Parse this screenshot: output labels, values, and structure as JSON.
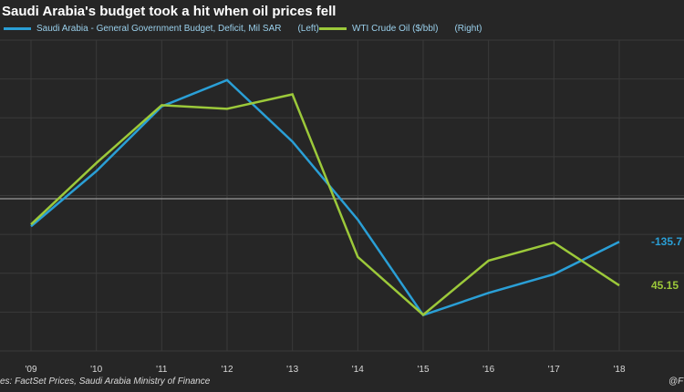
{
  "title": "Saudi Arabia's budget took a hit when oil prices fell",
  "source_text": "es: FactSet Prices, Saudi Arabia Ministry of Finance",
  "credit_text": "@F",
  "colors": {
    "background": "#262626",
    "budget": "#2a9fd6",
    "oil": "#9cc93a",
    "zero_line": "#9a9a9a",
    "grid": "#3a3a3a"
  },
  "legend": [
    {
      "label": "Saudi Arabia - General Government Budget, Deficit, Mil SAR",
      "side": "(Left)",
      "color": "#2a9fd6"
    },
    {
      "label": "WTI Crude Oil ($/bbl)",
      "side": "(Right)",
      "color": "#9cc93a"
    }
  ],
  "chart_data": {
    "type": "line",
    "title": "Saudi Arabia's budget took a hit when oil prices fell",
    "categories": [
      "'09",
      "'10",
      "'11",
      "'12",
      "'13",
      "'14",
      "'15",
      "'16",
      "'17",
      "'18"
    ],
    "series": [
      {
        "name": "Saudi Arabia - General Government Budget, Deficit, Mil SAR",
        "axis": "left",
        "color": "#2a9fd6",
        "values": [
          -87,
          87,
          291,
          374,
          180,
          -66,
          -367,
          -297,
          -238,
          -135.7
        ],
        "end_label": "-135.7"
      },
      {
        "name": "WTI Crude Oil ($/bbl)",
        "axis": "right",
        "color": "#9cc93a",
        "values": [
          62,
          79,
          95,
          94,
          98,
          53,
          37,
          52,
          57,
          45.15
        ],
        "end_label": "45.15"
      }
    ],
    "left_axis": {
      "zero_reference_line": true
    },
    "grid": true,
    "legend_position": "top-left"
  }
}
